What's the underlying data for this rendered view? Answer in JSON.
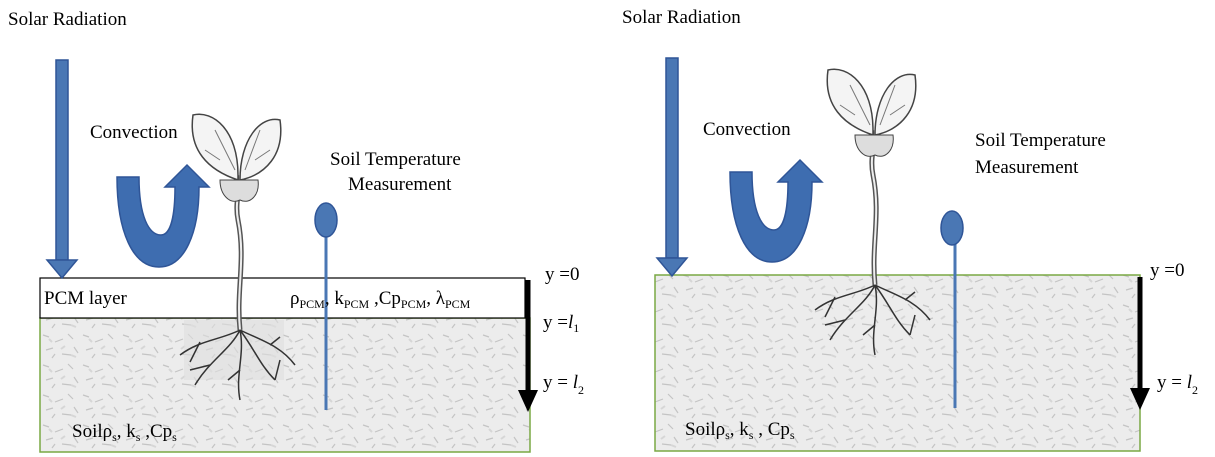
{
  "left": {
    "solar": "Solar Radiation",
    "convection": "Convection",
    "measurement": [
      "Soil Temperature",
      "Measurement"
    ],
    "pcm_layer": "PCM layer",
    "pcm_props": [
      {
        "symbol": "ρ",
        "sub": "PCM",
        "sep": ", "
      },
      {
        "symbol": "k",
        "sub": "PCM",
        "sep": " ,"
      },
      {
        "symbol": "Cp",
        "sub": "PCM",
        "sep": ", "
      },
      {
        "symbol": "λ",
        "sub": "PCM",
        "sep": ""
      }
    ],
    "y0": "y =0",
    "y1": {
      "prefix": "y =",
      "var": "l",
      "sub": "1"
    },
    "y2": {
      "prefix": "y = ",
      "var": "l",
      "sub": "2"
    },
    "soil": {
      "name": "Soil",
      "props": [
        {
          "symbol": "ρ",
          "sub": "s",
          "sep": ", "
        },
        {
          "symbol": "k",
          "sub": "s",
          "sep": " ,"
        },
        {
          "symbol": "Cp",
          "sub": "s",
          "sep": ""
        }
      ]
    }
  },
  "right": {
    "solar": "Solar Radiation",
    "convection": "Convection",
    "measurement": [
      "Soil  Temperature",
      "Measurement"
    ],
    "y0": "y =0",
    "y2": {
      "prefix": "y = ",
      "var": "l",
      "sub": "2"
    },
    "soil": {
      "name": "Soil",
      "props": [
        {
          "symbol": "ρ",
          "sub": "s",
          "sep": ", "
        },
        {
          "symbol": "k",
          "sub": "s",
          "sep": " , "
        },
        {
          "symbol": "Cp",
          "sub": "s",
          "sep": ""
        }
      ]
    }
  }
}
